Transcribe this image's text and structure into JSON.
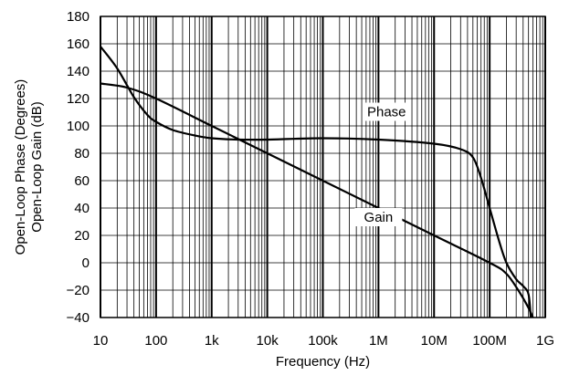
{
  "chart_data": {
    "type": "line",
    "xscale": "log",
    "xlabel": "Frequency (Hz)",
    "ylabel_lines": [
      "Open-Loop Phase (Degrees)",
      "Open-Loop Gain (dB)"
    ],
    "xlim": [
      10,
      1000000000
    ],
    "ylim": [
      -40,
      180
    ],
    "grid": true,
    "x_ticks": [
      {
        "value": 10,
        "label": "10"
      },
      {
        "value": 100,
        "label": "100"
      },
      {
        "value": 1000,
        "label": "1k"
      },
      {
        "value": 10000,
        "label": "10k"
      },
      {
        "value": 100000,
        "label": "100k"
      },
      {
        "value": 1000000,
        "label": "1M"
      },
      {
        "value": 10000000,
        "label": "10M"
      },
      {
        "value": 100000000,
        "label": "100M"
      },
      {
        "value": 1000000000,
        "label": "1G"
      }
    ],
    "y_ticks": [
      {
        "value": 180,
        "label": "180"
      },
      {
        "value": 160,
        "label": "160"
      },
      {
        "value": 140,
        "label": "140"
      },
      {
        "value": 120,
        "label": "120"
      },
      {
        "value": 100,
        "label": "100"
      },
      {
        "value": 80,
        "label": "80"
      },
      {
        "value": 60,
        "label": "60"
      },
      {
        "value": 40,
        "label": "40"
      },
      {
        "value": 20,
        "label": "20"
      },
      {
        "value": 0,
        "label": "0"
      },
      {
        "value": -20,
        "label": "−20"
      },
      {
        "value": -40,
        "label": "−40"
      }
    ],
    "series": [
      {
        "name": "Gain",
        "label_at": [
          1000000,
          30
        ],
        "x": [
          10,
          30,
          100,
          1000,
          10000,
          100000,
          1000000,
          10000000,
          100000000,
          200000000,
          350000000,
          500000000,
          600000000
        ],
        "y": [
          131,
          128,
          120,
          100,
          80,
          60,
          40,
          20,
          0,
          -8,
          -22,
          -33,
          -40
        ]
      },
      {
        "name": "Phase",
        "label_at": [
          1400000,
          107
        ],
        "x": [
          10,
          20,
          40,
          70,
          100,
          200,
          500,
          1000,
          3000,
          10000,
          100000,
          1000000,
          10000000,
          30000000,
          50000000,
          70000000,
          100000000,
          150000000,
          200000000,
          300000000,
          400000000,
          500000000,
          550000000
        ],
        "y": [
          158,
          142,
          121,
          108,
          103,
          97,
          93,
          91,
          90,
          90,
          91,
          90,
          87,
          83,
          77,
          62,
          40,
          15,
          0,
          -12,
          -17,
          -23,
          -40
        ]
      }
    ]
  }
}
